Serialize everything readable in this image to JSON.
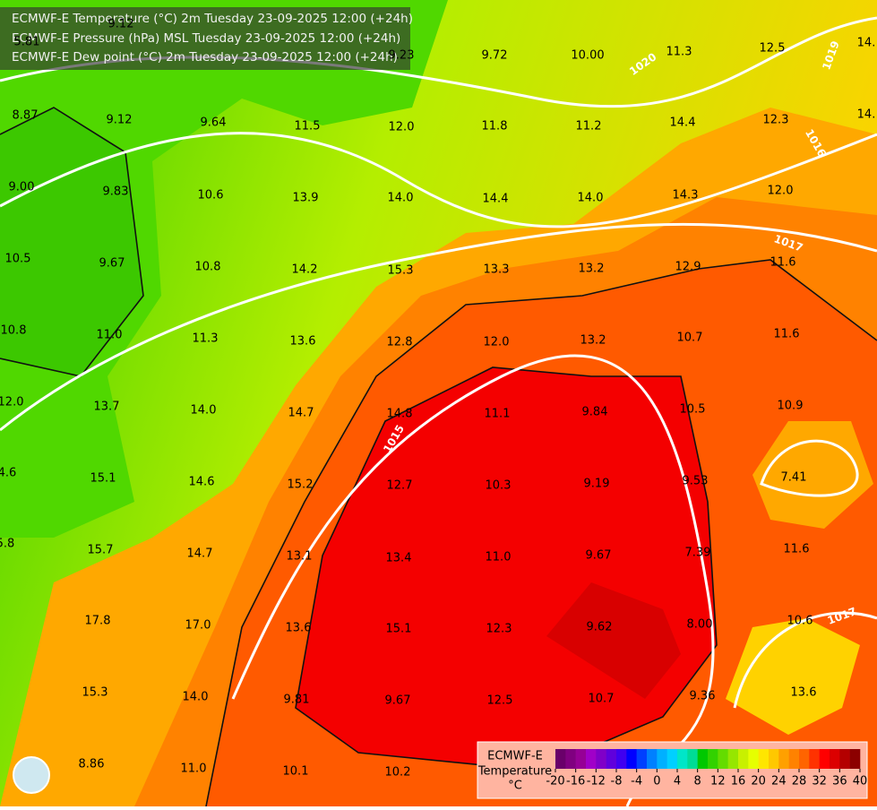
{
  "header": {
    "lines": [
      "ECMWF-E Temperature (°C) 2m Tuesday 23-09-2025 12:00 (+24h)",
      "ECMWF-E Pressure (hPa) MSL Tuesday 23-09-2025 12:00 (+24h)",
      "ECMWF-E Dew point (°C) 2m Tuesday 23-09-2025 12:00 (+24h)"
    ]
  },
  "map": {
    "labels": [
      "5.81",
      "9.12",
      "9.23",
      "9.72",
      "10.00",
      "11.3",
      "12.5",
      "14.",
      "8.87",
      "9.12",
      "9.64",
      "11.5",
      "12.0",
      "11.8",
      "11.2",
      "14.4",
      "12.3",
      "14.",
      "9.00",
      "9.83",
      "10.6",
      "13.9",
      "14.0",
      "14.4",
      "14.0",
      "14.3",
      "12.0",
      "10.5",
      "9.67",
      "10.8",
      "14.2",
      "15.3",
      "13.3",
      "13.2",
      "12.9",
      "11.6",
      "10.8",
      "11.0",
      "11.3",
      "13.6",
      "12.8",
      "12.0",
      "13.2",
      "10.7",
      "11.6",
      "12.0",
      "13.7",
      "14.0",
      "14.7",
      "14.8",
      "11.1",
      "9.84",
      "10.5",
      "10.9",
      "4.6",
      "15.1",
      "14.6",
      "15.2",
      "12.7",
      "10.3",
      "9.19",
      "9.53",
      "7.41",
      "5.8",
      "15.7",
      "14.7",
      "13.1",
      "13.4",
      "11.0",
      "9.67",
      "7.39",
      "11.6",
      "17.8",
      "17.0",
      "13.6",
      "15.1",
      "12.3",
      "9.62",
      "8.00",
      "10.6",
      "15.3",
      "14.0",
      "9.81",
      "9.67",
      "12.5",
      "10.7",
      "9.36",
      "13.6",
      "8.86",
      "11.0",
      "10.1",
      "10.2"
    ],
    "isobar_labels": [
      "1020",
      "1019",
      "1016",
      "1017",
      "1015",
      "1017"
    ]
  },
  "legend": {
    "title": "ECMWF-E",
    "subtitle": "Temperature",
    "unit": "°C",
    "ticks": [
      -20,
      -16,
      -12,
      -8,
      -4,
      0,
      4,
      8,
      12,
      16,
      20,
      24,
      28,
      32,
      36,
      40
    ],
    "colors": [
      "#6a006a",
      "#800080",
      "#960096",
      "#a000c8",
      "#8000c8",
      "#6000dc",
      "#4000f0",
      "#0000ff",
      "#0040ff",
      "#0080ff",
      "#00b0ff",
      "#00d0ff",
      "#00e6c8",
      "#00dc96",
      "#00c800",
      "#32d200",
      "#64dc00",
      "#96e600",
      "#c8f000",
      "#e6ff00",
      "#ffe600",
      "#ffc800",
      "#ffa000",
      "#ff8200",
      "#ff6400",
      "#ff3200",
      "#ff0000",
      "#dc0000",
      "#b40000",
      "#8c0000"
    ]
  }
}
